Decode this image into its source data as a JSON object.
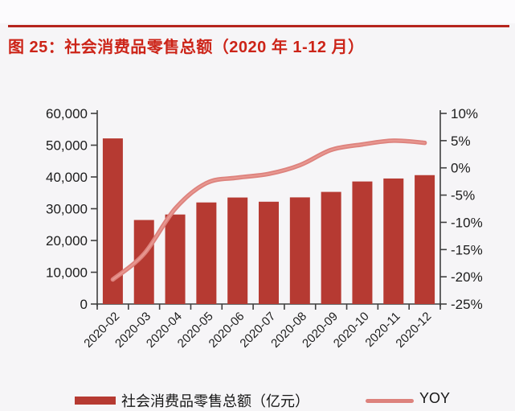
{
  "header": {
    "title": "图 25：社会消费品零售总额（2020 年 1-12 月）"
  },
  "legend": {
    "bar_label": "社会消费品零售总额（亿元）",
    "line_label": "YOY"
  },
  "colors": {
    "bar": "#b63a32",
    "line": "#dd827d",
    "line_highlight": "#e99a94",
    "title": "#cc2418",
    "rule": "#b6251d",
    "axis": "#3f3f3f",
    "text": "#1c1c1c",
    "background": "#f6f5f7"
  },
  "chart_data": {
    "type": "bar",
    "title": "社会消费品零售总额（2020 年 1-12 月）",
    "categories": [
      "2020-02",
      "2020-03",
      "2020-04",
      "2020-05",
      "2020-06",
      "2020-07",
      "2020-08",
      "2020-09",
      "2020-10",
      "2020-11",
      "2020-12"
    ],
    "series": [
      {
        "name": "社会消费品零售总额（亿元）",
        "type": "bar",
        "axis": "left",
        "values": [
          52130,
          26450,
          28178,
          31973,
          33526,
          32203,
          33571,
          35295,
          38576,
          39514,
          40566
        ]
      },
      {
        "name": "YOY",
        "type": "line",
        "axis": "right",
        "values": [
          -20.5,
          -15.8,
          -7.5,
          -2.8,
          -1.8,
          -1.1,
          0.5,
          3.3,
          4.3,
          5.0,
          4.6
        ]
      }
    ],
    "left_axis": {
      "min": 0,
      "max": 60000,
      "step": 10000,
      "tick_labels": [
        "0",
        "10,000",
        "20,000",
        "30,000",
        "40,000",
        "50,000",
        "60,000"
      ]
    },
    "right_axis": {
      "min": -25,
      "max": 10,
      "step": 5,
      "tick_labels": [
        "-25%",
        "-20%",
        "-15%",
        "-10%",
        "-5%",
        "0%",
        "5%",
        "10%"
      ]
    },
    "xlabel": "",
    "ylabel": "",
    "grid": false,
    "legend_position": "bottom",
    "x_tick_rotation": -45
  }
}
